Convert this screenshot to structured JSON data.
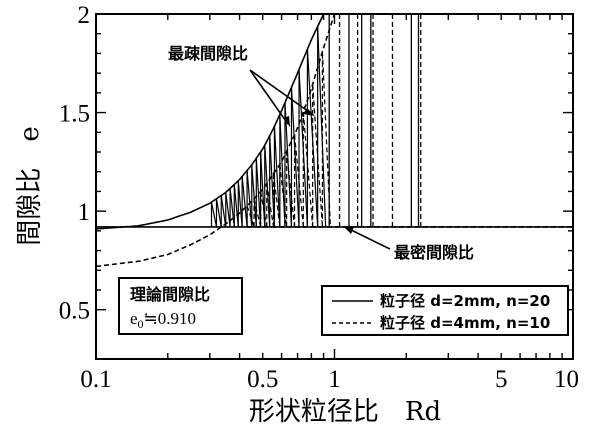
{
  "chart_data": {
    "type": "line",
    "xlabel": "形状粒径比　Rd",
    "ylabel": "間隙比　e",
    "x_scale": "log",
    "xlim": [
      0.1,
      10
    ],
    "ylim": [
      0.25,
      2
    ],
    "x_ticks": [
      {
        "value": 0.1,
        "label": "0.1"
      },
      {
        "value": 0.5,
        "label": "0.5"
      },
      {
        "value": 1,
        "label": "1"
      },
      {
        "value": 5,
        "label": "5"
      },
      {
        "value": 10,
        "label": "10"
      }
    ],
    "y_ticks": [
      {
        "value": 0.5,
        "label": "0.5"
      },
      {
        "value": 1,
        "label": "1"
      },
      {
        "value": 1.5,
        "label": "1.5"
      },
      {
        "value": 2,
        "label": "2"
      }
    ],
    "grid": false,
    "series": [
      {
        "name": "粒子径 d=2mm,  n=20",
        "style": "solid",
        "envelope_x": [
          0.1,
          0.15,
          0.2,
          0.25,
          0.3,
          0.35,
          0.4,
          0.45,
          0.5,
          0.55,
          0.6,
          0.7,
          0.8,
          0.9
        ],
        "envelope_y": [
          0.91,
          0.925,
          0.955,
          0.995,
          1.04,
          1.095,
          1.16,
          1.235,
          1.315,
          1.41,
          1.51,
          1.7,
          1.87,
          2.0
        ],
        "baseline": 0.92,
        "saw_x": [
          0.305,
          0.32,
          0.335,
          0.35,
          0.365,
          0.38,
          0.395,
          0.41,
          0.43,
          0.45,
          0.47,
          0.49,
          0.51,
          0.535,
          0.56,
          0.59,
          0.62,
          0.66,
          0.71,
          0.77,
          0.85
        ],
        "vertical_x": [
          0.95,
          1.15,
          1.3,
          1.42,
          2.1,
          2.25
        ]
      },
      {
        "name": "粒子径 d=4mm,  n=10",
        "style": "dashed",
        "envelope_x": [
          0.1,
          0.15,
          0.2,
          0.25,
          0.3,
          0.35,
          0.4,
          0.45,
          0.5,
          0.6,
          0.7,
          0.8,
          0.9,
          1.0
        ],
        "envelope_y": [
          0.72,
          0.745,
          0.78,
          0.83,
          0.88,
          0.935,
          0.99,
          1.05,
          1.11,
          1.25,
          1.42,
          1.62,
          1.83,
          2.0
        ],
        "baseline": 0.92,
        "saw_x": [
          0.43,
          0.46,
          0.49,
          0.52,
          0.555,
          0.59,
          0.63,
          0.68,
          0.74,
          0.81,
          0.89
        ],
        "vertical_x": [
          1.05,
          1.25,
          1.45,
          1.75,
          2.3
        ]
      }
    ],
    "annotations": {
      "loosest": "最疎間隙比",
      "densest": "最密間隙比",
      "theory_label": "理論間隙比",
      "theory_prefix": "e",
      "theory_sub": "0",
      "theory_value": "≒0.910"
    },
    "legend_position": "bottom-right"
  }
}
